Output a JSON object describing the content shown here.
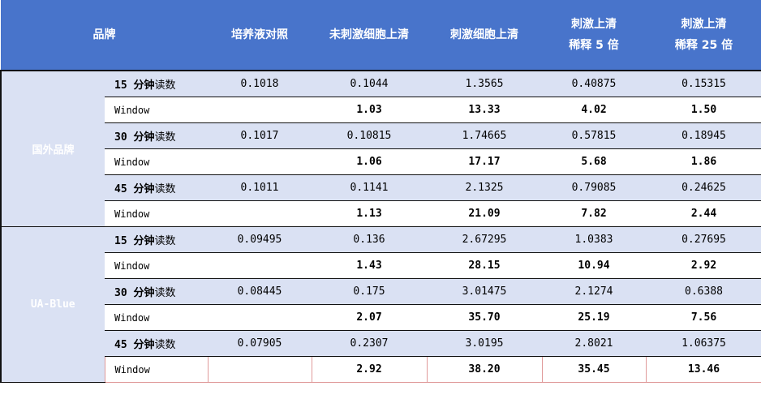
{
  "header": [
    "品牌",
    "培养液对照",
    "未刺激细胞上清",
    "刺激细胞上清",
    "刺激上清\n稀释 5 倍",
    "刺激上清\n稀释 25 倍"
  ],
  "groups": [
    {
      "brand": "国外品牌",
      "rows": [
        {
          "time": "15 分钟",
          "suffix": "读数",
          "values": [
            "0.1018",
            "0.1044",
            "1.3565",
            "0.40875",
            "0.15315"
          ]
        },
        {
          "label": "Window",
          "values": [
            "",
            "1.03",
            "13.33",
            "4.02",
            "1.50"
          ]
        },
        {
          "time": "30 分钟",
          "suffix": "读数",
          "values": [
            "0.1017",
            "0.10815",
            "1.74665",
            "0.57815",
            "0.18945"
          ]
        },
        {
          "label": "Window",
          "values": [
            "",
            "1.06",
            "17.17",
            "5.68",
            "1.86"
          ]
        },
        {
          "time": "45 分钟",
          "suffix": "读数",
          "values": [
            "0.1011",
            "0.1141",
            "2.1325",
            "0.79085",
            "0.24625"
          ]
        },
        {
          "label": "Window",
          "values": [
            "",
            "1.13",
            "21.09",
            "7.82",
            "2.44"
          ]
        }
      ]
    },
    {
      "brand": "UA-Blue",
      "rows": [
        {
          "time": "15 分钟",
          "suffix": "读数",
          "values": [
            "0.09495",
            "0.136",
            "2.67295",
            "1.0383",
            "0.27695"
          ]
        },
        {
          "label": "Window",
          "values": [
            "",
            "1.43",
            "28.15",
            "10.94",
            "2.92"
          ]
        },
        {
          "time": "30 分钟",
          "suffix": "读数",
          "values": [
            "0.08445",
            "0.175",
            "3.01475",
            "2.1274",
            "0.6388"
          ]
        },
        {
          "label": "Window",
          "values": [
            "",
            "2.07",
            "35.70",
            "25.19",
            "7.56"
          ]
        },
        {
          "time": "45 分钟",
          "suffix": "读数",
          "values": [
            "0.07905",
            "0.2307",
            "3.0195",
            "2.8021",
            "1.06375"
          ]
        },
        {
          "label": "Window",
          "values": [
            "",
            "2.92",
            "38.20",
            "35.45",
            "13.46"
          ]
        }
      ]
    }
  ]
}
